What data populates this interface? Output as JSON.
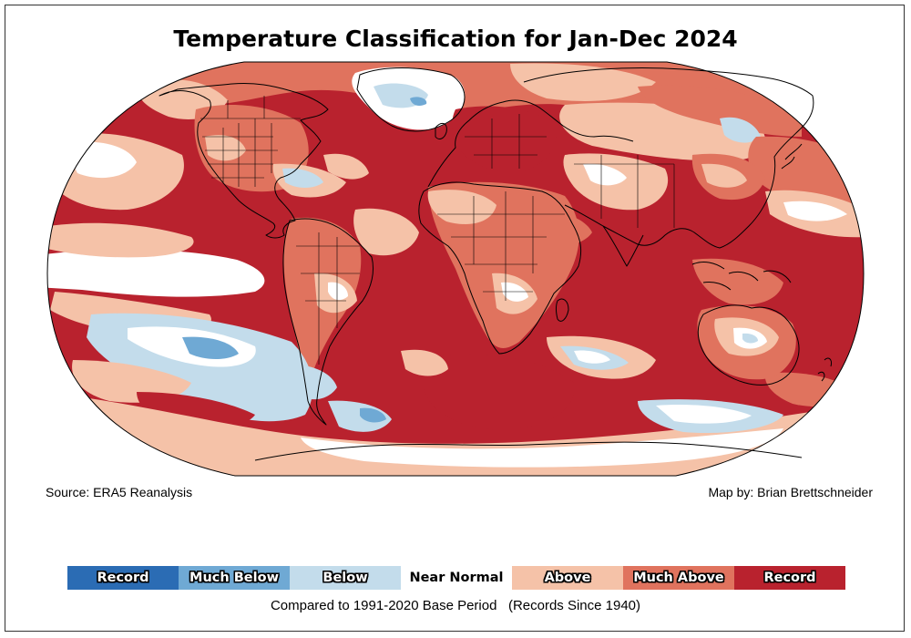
{
  "title": "Temperature Classification for Jan-Dec 2024",
  "source": "Source: ERA5 Reanalysis",
  "credit": "Map by: Brian Brettschneider",
  "footnote": "Compared to 1991-2020 Base Period   (Records Since 1940)",
  "legend": [
    {
      "label": "Record",
      "color": "#2b6cb4"
    },
    {
      "label": "Much Below",
      "color": "#6fa9d4"
    },
    {
      "label": "Below",
      "color": "#c3dceb"
    },
    {
      "label": "Near Normal",
      "color": "#ffffff"
    },
    {
      "label": "Above",
      "color": "#f5c2a8"
    },
    {
      "label": "Much Above",
      "color": "#e0735e"
    },
    {
      "label": "Record",
      "color": "#b9222e"
    }
  ],
  "map": {
    "projection": "robinson",
    "background_class": "Record",
    "ocean_color": "#b9222e"
  }
}
